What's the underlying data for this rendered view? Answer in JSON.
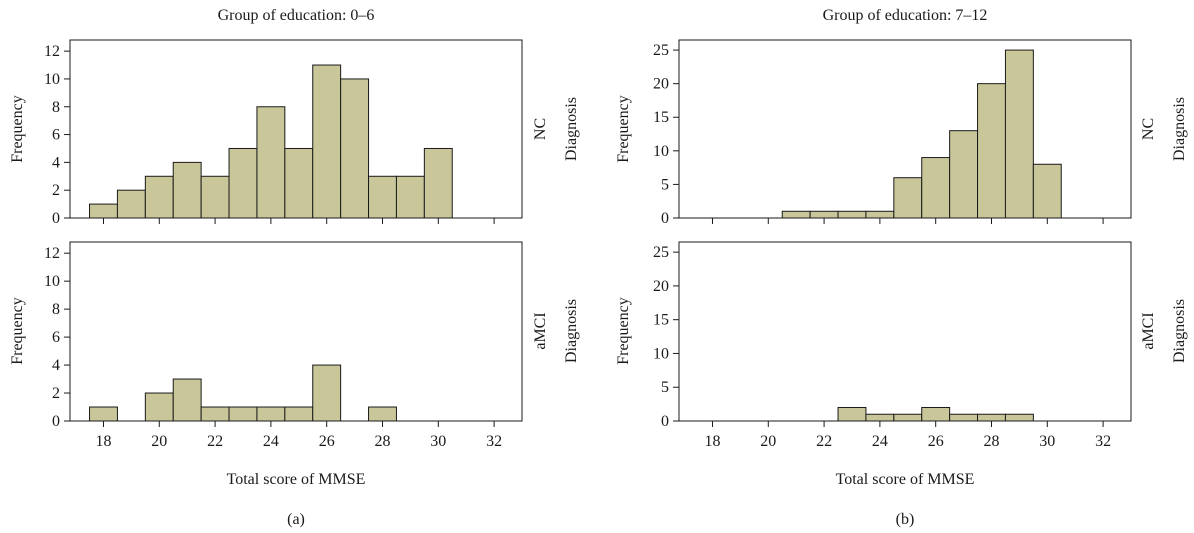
{
  "figure": {
    "panels": [
      {
        "id": "a",
        "caption": "(a)",
        "title": "Group of education: 0–6",
        "xlabel": "Total score of MMSE",
        "row_group_label": "Diagnosis"
      },
      {
        "id": "b",
        "caption": "(b)",
        "title": "Group of education: 7–12",
        "xlabel": "Total score of MMSE",
        "row_group_label": "Diagnosis"
      }
    ]
  },
  "colors": {
    "bar_fill": "#c9c79a",
    "bar_edge": "#1a1a1a",
    "axis": "#1a1a1a"
  },
  "chart_data": [
    {
      "type": "bar",
      "title": "Group of education: 0–6",
      "row_label": "NC",
      "row_group_label": "Diagnosis",
      "xlabel": "Total score of MMSE",
      "ylabel": "Frequency",
      "xlim": [
        16.8,
        33.0
      ],
      "ylim": [
        0,
        12.8
      ],
      "xticks": [
        18,
        20,
        22,
        24,
        26,
        28,
        30,
        32
      ],
      "yticks": [
        0,
        2,
        4,
        6,
        8,
        10,
        12
      ],
      "bin_width": 1,
      "x": [
        18,
        19,
        20,
        21,
        22,
        23,
        24,
        25,
        26,
        27,
        28,
        29,
        30
      ],
      "values": [
        1,
        2,
        3,
        4,
        3,
        5,
        8,
        5,
        11,
        10,
        3,
        3,
        5
      ],
      "grid": false
    },
    {
      "type": "bar",
      "title": "Group of education: 0–6",
      "row_label": "aMCI",
      "row_group_label": "Diagnosis",
      "xlabel": "Total score of MMSE",
      "ylabel": "Frequency",
      "xlim": [
        16.8,
        33.0
      ],
      "ylim": [
        0,
        12.8
      ],
      "xticks": [
        18,
        20,
        22,
        24,
        26,
        28,
        30,
        32
      ],
      "yticks": [
        0,
        2,
        4,
        6,
        8,
        10,
        12
      ],
      "bin_width": 1,
      "x": [
        18,
        20,
        21,
        22,
        23,
        24,
        25,
        26,
        28
      ],
      "values": [
        1,
        2,
        3,
        1,
        1,
        1,
        1,
        4,
        1
      ],
      "grid": false
    },
    {
      "type": "bar",
      "title": "Group of education: 7–12",
      "row_label": "NC",
      "row_group_label": "Diagnosis",
      "xlabel": "Total score of MMSE",
      "ylabel": "Frequency",
      "xlim": [
        16.8,
        33.0
      ],
      "ylim": [
        0,
        26.5
      ],
      "xticks": [
        18,
        20,
        22,
        24,
        26,
        28,
        30,
        32
      ],
      "yticks": [
        0,
        5,
        10,
        15,
        20,
        25
      ],
      "bin_width": 1,
      "x": [
        21,
        22,
        23,
        24,
        25,
        26,
        27,
        28,
        29,
        30
      ],
      "values": [
        1,
        1,
        1,
        1,
        6,
        9,
        13,
        20,
        25,
        8
      ],
      "grid": false
    },
    {
      "type": "bar",
      "title": "Group of education: 7–12",
      "row_label": "aMCI",
      "row_group_label": "Diagnosis",
      "xlabel": "Total score of MMSE",
      "ylabel": "Frequency",
      "xlim": [
        16.8,
        33.0
      ],
      "ylim": [
        0,
        26.5
      ],
      "xticks": [
        18,
        20,
        22,
        24,
        26,
        28,
        30,
        32
      ],
      "yticks": [
        0,
        5,
        10,
        15,
        20,
        25
      ],
      "bin_width": 1,
      "x": [
        23,
        24,
        25,
        26,
        27,
        28,
        29
      ],
      "values": [
        2,
        1,
        1,
        2,
        1,
        1,
        1
      ],
      "grid": false
    }
  ]
}
